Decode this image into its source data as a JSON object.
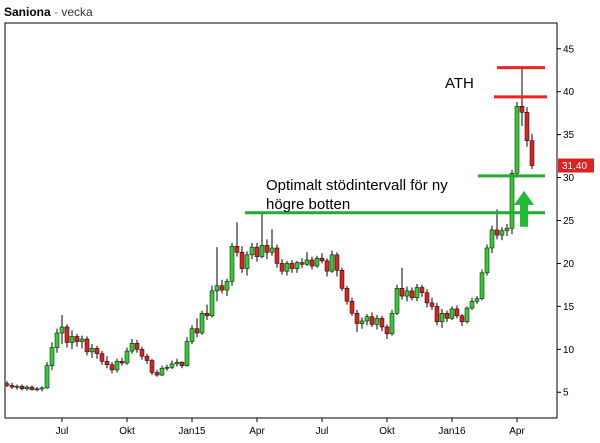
{
  "chart_data": {
    "type": "candlestick",
    "title": "Saniona",
    "subtitle": "vecka",
    "ylim": [
      2,
      48
    ],
    "y_ticks": [
      5,
      10,
      15,
      20,
      25,
      30,
      35,
      40,
      45
    ],
    "y_axis_side": "right",
    "grid": false,
    "x_ticks": [
      {
        "label": "Jul",
        "week": 11
      },
      {
        "label": "Okt",
        "week": 24
      },
      {
        "label": "Jan15",
        "week": 37
      },
      {
        "label": "Apr",
        "week": 50
      },
      {
        "label": "Jul",
        "week": 63
      },
      {
        "label": "Okt",
        "week": 76
      },
      {
        "label": "Jan16",
        "week": 89
      },
      {
        "label": "Apr",
        "week": 102
      }
    ],
    "last_price": "31,40",
    "last_price_value": 31.4,
    "colors": {
      "up": "#33cc33",
      "down": "#dd2222",
      "support": "#22aa33",
      "ath": "#ee2222",
      "arrow": "#22bb33",
      "price_badge": "#dd2222"
    },
    "candles": [
      [
        6.0,
        6.3,
        5.6,
        5.8
      ],
      [
        5.8,
        6.1,
        5.4,
        5.6
      ],
      [
        5.6,
        5.9,
        5.3,
        5.7
      ],
      [
        5.7,
        5.9,
        5.2,
        5.4
      ],
      [
        5.4,
        5.8,
        5.2,
        5.6
      ],
      [
        5.6,
        5.8,
        5.2,
        5.3
      ],
      [
        5.3,
        5.6,
        5.1,
        5.4
      ],
      [
        5.4,
        5.7,
        5.1,
        5.5
      ],
      [
        5.5,
        8.5,
        5.4,
        8.1
      ],
      [
        8.1,
        10.8,
        7.6,
        10.2
      ],
      [
        10.2,
        12.4,
        9.6,
        11.9
      ],
      [
        11.9,
        14.0,
        10.6,
        12.6
      ],
      [
        12.6,
        12.9,
        10.2,
        10.8
      ],
      [
        10.8,
        12.2,
        10.0,
        11.5
      ],
      [
        11.5,
        11.8,
        10.3,
        10.9
      ],
      [
        10.9,
        11.6,
        10.1,
        11.2
      ],
      [
        11.2,
        11.5,
        9.3,
        9.7
      ],
      [
        9.7,
        10.6,
        9.0,
        10.1
      ],
      [
        10.1,
        10.4,
        8.9,
        9.5
      ],
      [
        9.5,
        9.8,
        8.2,
        8.6
      ],
      [
        8.6,
        9.2,
        7.8,
        8.2
      ],
      [
        8.2,
        8.5,
        7.2,
        7.6
      ],
      [
        7.6,
        8.9,
        7.3,
        8.6
      ],
      [
        8.6,
        9.0,
        8.1,
        8.4
      ],
      [
        8.4,
        10.2,
        8.2,
        9.8
      ],
      [
        9.8,
        11.2,
        9.5,
        10.7
      ],
      [
        10.7,
        11.1,
        9.6,
        10.0
      ],
      [
        10.0,
        10.3,
        8.8,
        9.2
      ],
      [
        9.2,
        9.5,
        8.3,
        8.7
      ],
      [
        8.7,
        8.9,
        7.0,
        7.3
      ],
      [
        7.3,
        7.6,
        6.8,
        7.0
      ],
      [
        7.0,
        8.1,
        6.9,
        7.8
      ],
      [
        7.8,
        8.2,
        7.5,
        7.9
      ],
      [
        7.9,
        8.7,
        7.7,
        8.3
      ],
      [
        8.3,
        8.9,
        8.0,
        8.5
      ],
      [
        8.5,
        8.6,
        7.8,
        8.1
      ],
      [
        8.1,
        11.4,
        8.0,
        10.9
      ],
      [
        10.9,
        12.8,
        10.6,
        12.4
      ],
      [
        12.4,
        13.6,
        11.4,
        11.9
      ],
      [
        11.9,
        14.5,
        11.7,
        14.2
      ],
      [
        14.2,
        15.2,
        13.4,
        13.9
      ],
      [
        13.9,
        17.4,
        13.7,
        16.8
      ],
      [
        16.8,
        21.9,
        15.6,
        17.4
      ],
      [
        17.4,
        18.1,
        16.5,
        16.9
      ],
      [
        16.9,
        18.2,
        16.2,
        17.9
      ],
      [
        17.9,
        22.4,
        17.4,
        22.0
      ],
      [
        22.0,
        24.8,
        20.8,
        21.3
      ],
      [
        21.3,
        22.0,
        18.9,
        19.4
      ],
      [
        19.4,
        21.4,
        18.6,
        21.0
      ],
      [
        21.0,
        22.4,
        20.5,
        21.9
      ],
      [
        21.9,
        22.4,
        20.2,
        20.8
      ],
      [
        20.8,
        25.8,
        20.6,
        22.1
      ],
      [
        22.1,
        22.8,
        20.5,
        21.3
      ],
      [
        21.3,
        24.0,
        20.9,
        21.8
      ],
      [
        21.8,
        22.2,
        19.5,
        20.0
      ],
      [
        20.0,
        20.5,
        18.7,
        19.1
      ],
      [
        19.1,
        20.3,
        18.6,
        20.0
      ],
      [
        20.0,
        20.4,
        18.9,
        19.4
      ],
      [
        19.4,
        20.3,
        18.9,
        20.1
      ],
      [
        20.1,
        20.6,
        19.5,
        19.9
      ],
      [
        19.9,
        21.3,
        19.7,
        20.4
      ],
      [
        20.4,
        20.8,
        19.3,
        19.7
      ],
      [
        19.7,
        20.9,
        19.5,
        20.6
      ],
      [
        20.6,
        21.2,
        20.0,
        20.3
      ],
      [
        20.3,
        20.6,
        18.5,
        19.1
      ],
      [
        19.1,
        21.5,
        18.9,
        21.0
      ],
      [
        21.0,
        21.3,
        18.5,
        19.2
      ],
      [
        19.2,
        19.5,
        16.8,
        17.1
      ],
      [
        17.1,
        17.4,
        15.2,
        15.6
      ],
      [
        15.6,
        16.0,
        13.9,
        14.2
      ],
      [
        14.2,
        14.6,
        12.0,
        13.0
      ],
      [
        13.0,
        13.7,
        12.4,
        13.3
      ],
      [
        13.3,
        14.1,
        12.8,
        13.8
      ],
      [
        13.8,
        14.3,
        12.6,
        12.9
      ],
      [
        12.9,
        14.0,
        12.3,
        13.6
      ],
      [
        13.6,
        13.9,
        12.1,
        12.6
      ],
      [
        12.6,
        12.9,
        11.2,
        11.8
      ],
      [
        11.8,
        14.6,
        11.6,
        14.2
      ],
      [
        14.2,
        17.5,
        14.0,
        17.1
      ],
      [
        17.1,
        19.5,
        15.8,
        16.2
      ],
      [
        16.2,
        17.3,
        15.6,
        16.8
      ],
      [
        16.8,
        17.2,
        15.7,
        16.0
      ],
      [
        16.0,
        17.6,
        15.6,
        17.2
      ],
      [
        17.2,
        17.5,
        16.1,
        16.6
      ],
      [
        16.6,
        17.0,
        14.9,
        15.4
      ],
      [
        15.4,
        16.0,
        14.6,
        15.0
      ],
      [
        15.0,
        15.4,
        12.8,
        13.2
      ],
      [
        13.2,
        14.7,
        12.5,
        14.2
      ],
      [
        14.2,
        14.5,
        13.2,
        13.6
      ],
      [
        13.6,
        15.0,
        13.4,
        14.7
      ],
      [
        14.7,
        15.1,
        13.6,
        13.9
      ],
      [
        13.9,
        14.1,
        12.7,
        13.2
      ],
      [
        13.2,
        15.0,
        13.0,
        14.8
      ],
      [
        14.8,
        16.0,
        14.6,
        15.6
      ],
      [
        15.6,
        16.2,
        15.3,
        15.9
      ],
      [
        15.9,
        19.3,
        15.7,
        18.9
      ],
      [
        18.9,
        22.2,
        18.6,
        21.8
      ],
      [
        21.8,
        24.4,
        21.2,
        23.9
      ],
      [
        23.9,
        26.3,
        22.8,
        23.3
      ],
      [
        23.3,
        24.2,
        22.7,
        23.8
      ],
      [
        23.8,
        24.6,
        23.2,
        24.1
      ],
      [
        24.1,
        30.9,
        23.4,
        30.5
      ],
      [
        30.5,
        38.8,
        30.0,
        38.3
      ],
      [
        38.3,
        42.9,
        36.0,
        37.6
      ],
      [
        37.6,
        38.2,
        33.6,
        34.3
      ],
      [
        34.3,
        35.1,
        31.0,
        31.4
      ]
    ],
    "annotations": {
      "ath_label": "ATH",
      "ath_levels": [
        42.8,
        39.4
      ],
      "support_label_line1": "Optimalt stödintervall för ny",
      "support_label_line2": "högre botten",
      "support_levels": [
        25.9,
        30.2
      ]
    }
  }
}
